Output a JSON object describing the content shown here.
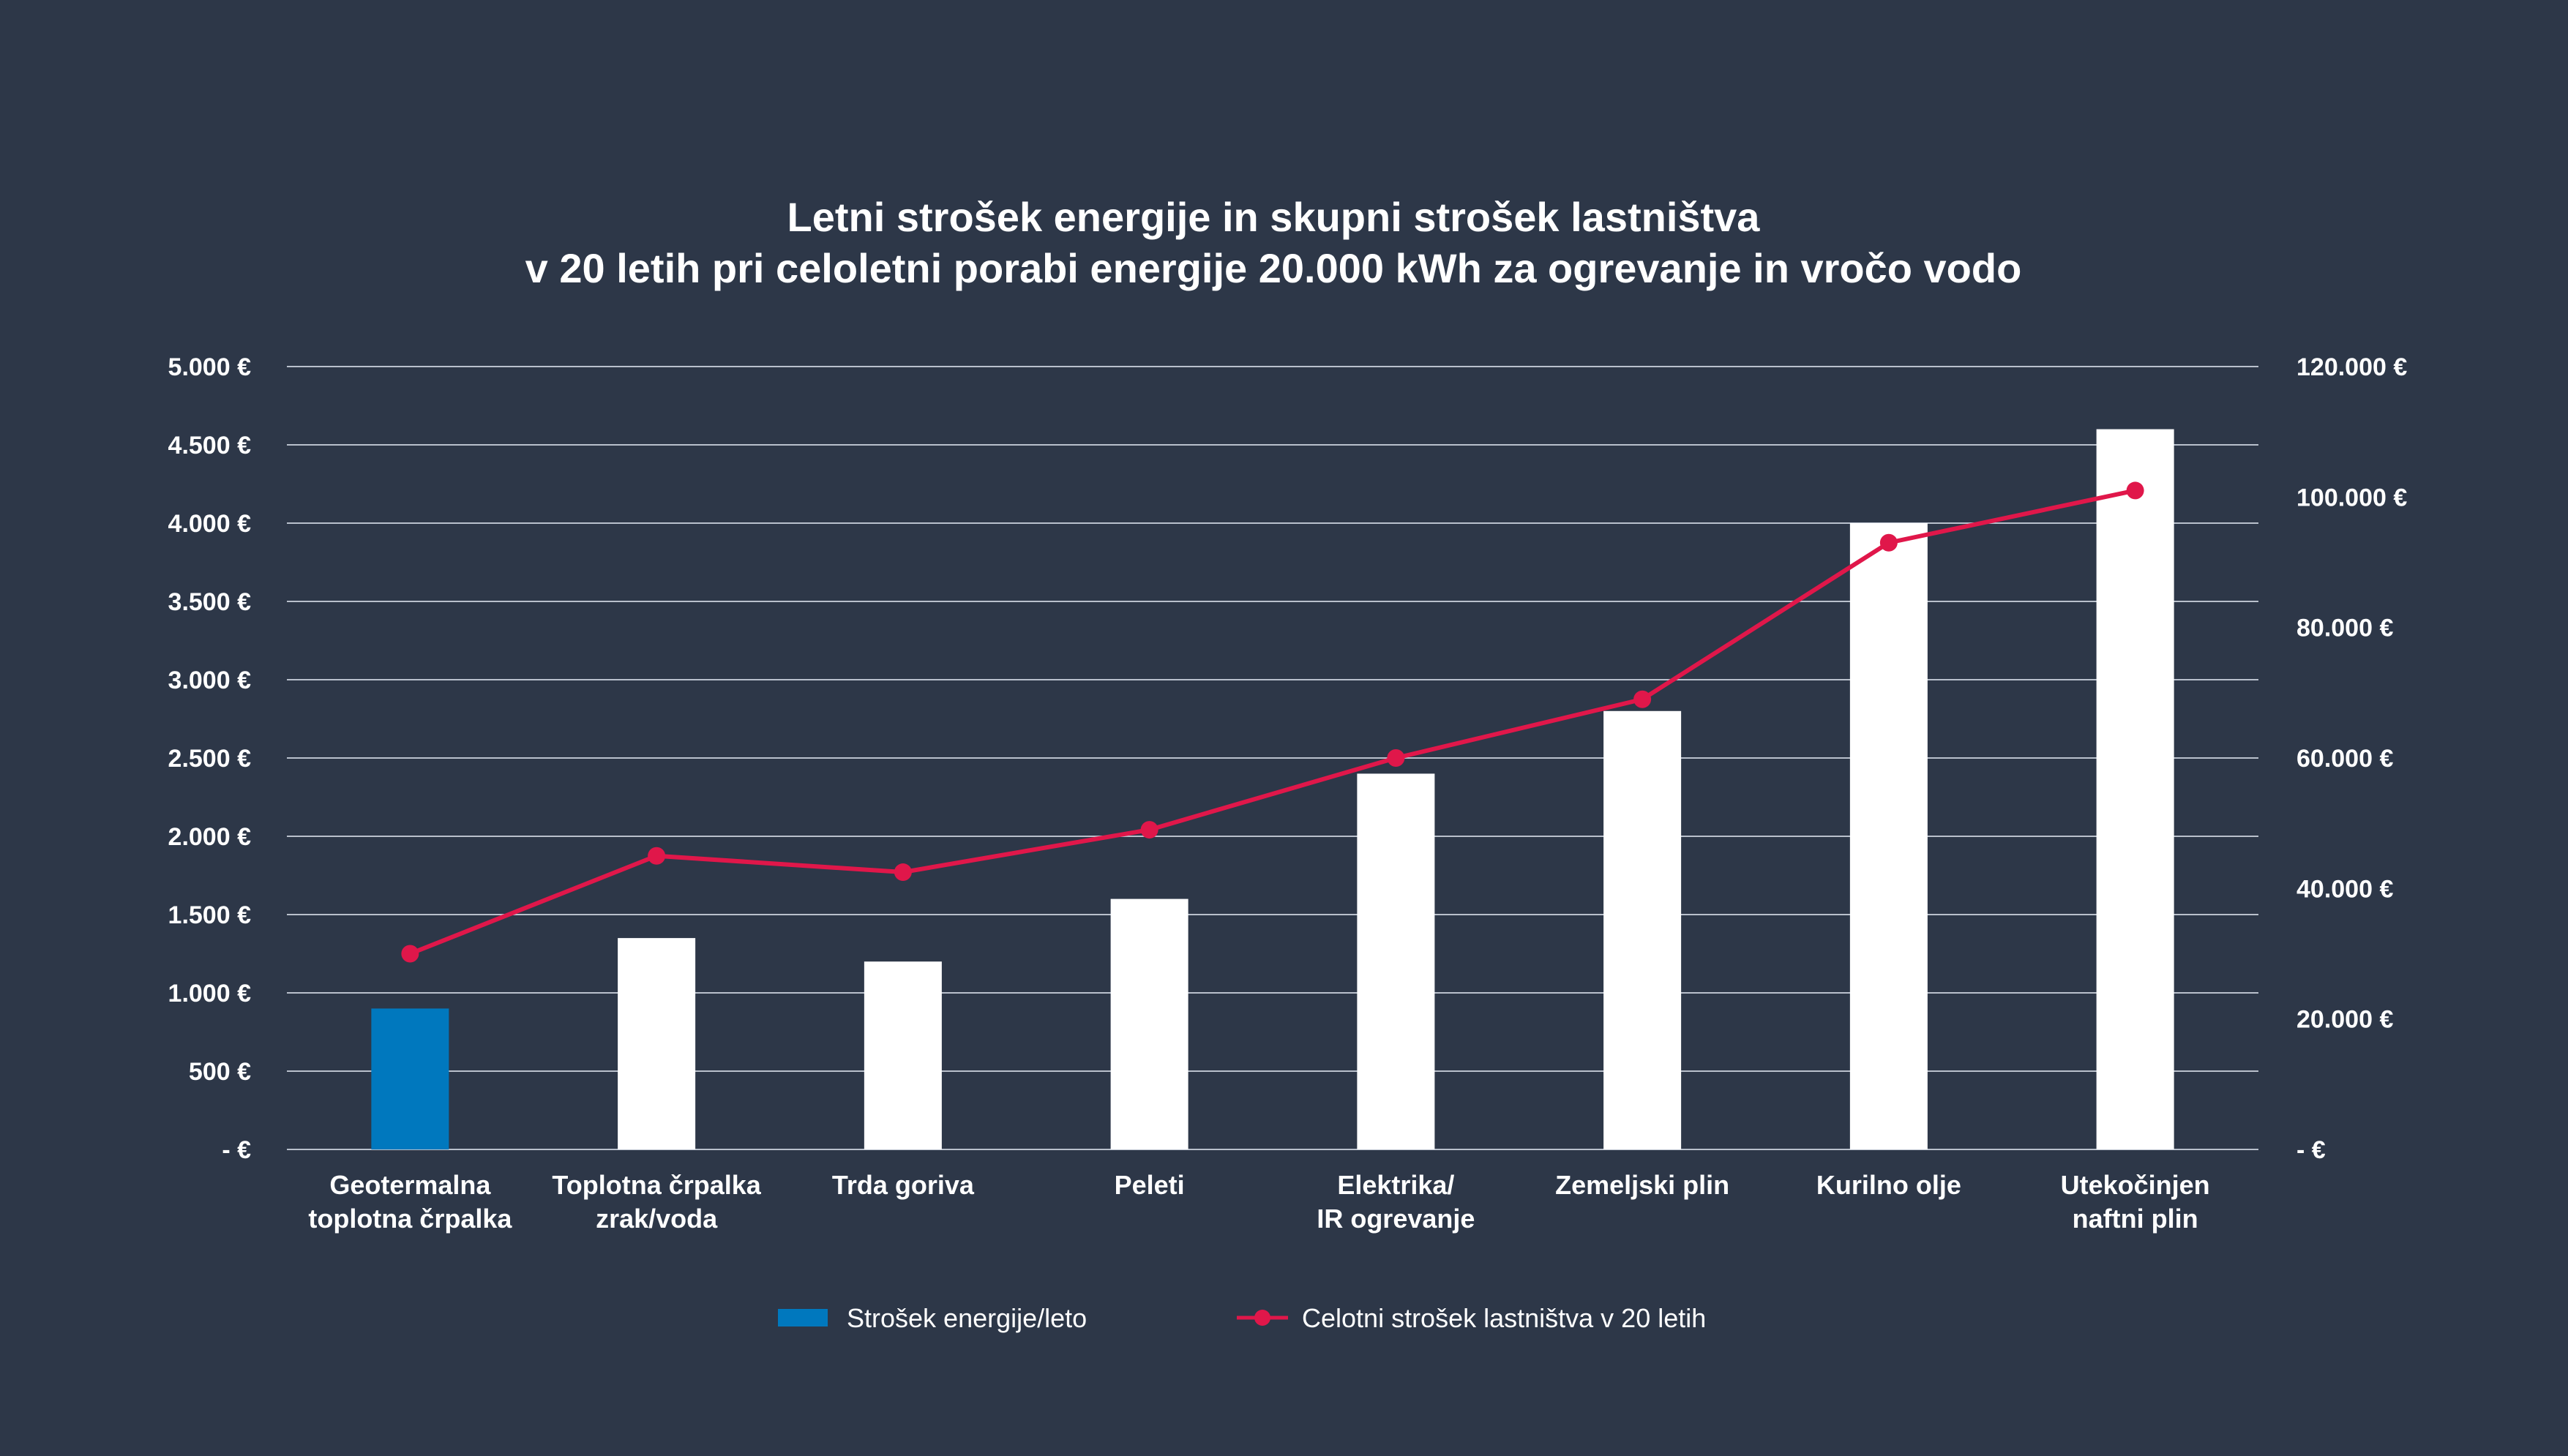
{
  "chart_data": {
    "type": "bar",
    "title": [
      "Letni strošek energije in skupni strošek lastništva",
      "v 20 letih pri celoletni porabi energije 20.000 kWh za ogrevanje in vročo vodo"
    ],
    "categories": [
      [
        "Geotermalna",
        "toplotna črpalka"
      ],
      [
        "Toplotna črpalka",
        "zrak/voda"
      ],
      [
        "Trda goriva"
      ],
      [
        "Peleti"
      ],
      [
        "Elektrika/",
        "IR ogrevanje"
      ],
      [
        "Zemeljski plin"
      ],
      [
        "Kurilno olje"
      ],
      [
        "Utekočinjen",
        "naftni plin"
      ]
    ],
    "series": [
      {
        "name": "Strošek energije/leto",
        "kind": "bar",
        "axis": "left",
        "values": [
          900,
          1350,
          1200,
          1600,
          2400,
          2800,
          4000,
          4600
        ],
        "highlight_color": "#0078be",
        "color": "#ffffff",
        "highlight_index": 0
      },
      {
        "name": "Celotni strošek lastništva v 20 letih",
        "kind": "line",
        "axis": "right",
        "values": [
          30000,
          45000,
          42500,
          49000,
          60000,
          69000,
          93000,
          101000
        ],
        "color": "#e0174a"
      }
    ],
    "y_left": {
      "ylim": [
        0,
        5000
      ],
      "ticks": [
        0,
        500,
        1000,
        1500,
        2000,
        2500,
        3000,
        3500,
        4000,
        4500,
        5000
      ],
      "tick_labels": [
        "- €",
        "500 €",
        "1.000 €",
        "1.500 €",
        "2.000 €",
        "2.500 €",
        "3.000 €",
        "3.500 €",
        "4.000 €",
        "4.500 €",
        "5.000 €"
      ]
    },
    "y_right": {
      "ylim": [
        0,
        120000
      ],
      "ticks": [
        0,
        20000,
        40000,
        60000,
        80000,
        100000,
        120000
      ],
      "tick_labels": [
        "- €",
        "20.000 €",
        "40.000 €",
        "60.000 €",
        "80.000 €",
        "100.000 €",
        "120.000 €"
      ]
    },
    "legend": [
      {
        "label": "Strošek energije/leto",
        "marker": "bar",
        "color": "#0078be"
      },
      {
        "label": "Celotni strošek lastništva v 20 letih",
        "marker": "line",
        "color": "#e0174a"
      }
    ],
    "legend_position": "bottom",
    "grid": true,
    "background": "#2d3748"
  }
}
